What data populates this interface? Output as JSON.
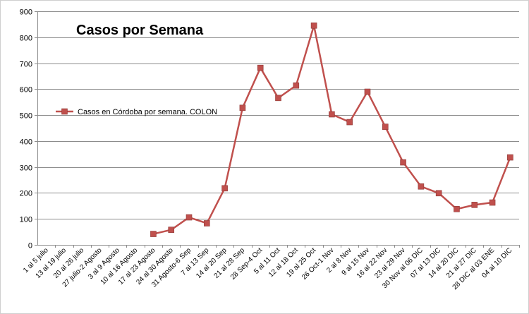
{
  "chart_data": {
    "type": "line",
    "title": "Casos por Semana",
    "xlabel": "",
    "ylabel": "",
    "ylim": [
      0,
      900
    ],
    "yticks": [
      0,
      100,
      200,
      300,
      400,
      500,
      600,
      700,
      800,
      900
    ],
    "grid": "horizontal",
    "legend_position": "left",
    "categories": [
      "1 al 5 julio",
      "13 al 19 julio",
      "20 al 26 julio",
      "27 julio-2 Agosto",
      "3 al 9 Agosto",
      "10 al 16 Agosto",
      "17 al 23 Agosto",
      "24 al 30 Agosto",
      "31 Agosto-6 Sep",
      "7 al 13 Sep",
      "14 al 20 Sep",
      "21 al 28 Sep",
      "28 Sep-4 Oct",
      "5 al 11 Oct",
      "12 al 18 Oct",
      "19 al 25 Oct",
      "26 Oct-1 Nov",
      "2 al 8 Nov",
      "9 al 15 Nov",
      "16 al 22 Nov",
      "23 al 29 Nov",
      "30 Nov al 06 DIC",
      "07 al 13 DIC",
      "14 al 20 DIC",
      "21 al 27 DIC",
      "28 DIC al 03 ENE",
      "04 al 10 DIC"
    ],
    "series": [
      {
        "name": "Casos en Córdoba por semana. COLON",
        "color": "#C0504D",
        "values": [
          null,
          null,
          null,
          null,
          null,
          null,
          42,
          58,
          106,
          83,
          218,
          528,
          682,
          566,
          614,
          845,
          503,
          473,
          590,
          455,
          318,
          225,
          199,
          138,
          154,
          163,
          337
        ]
      }
    ]
  }
}
